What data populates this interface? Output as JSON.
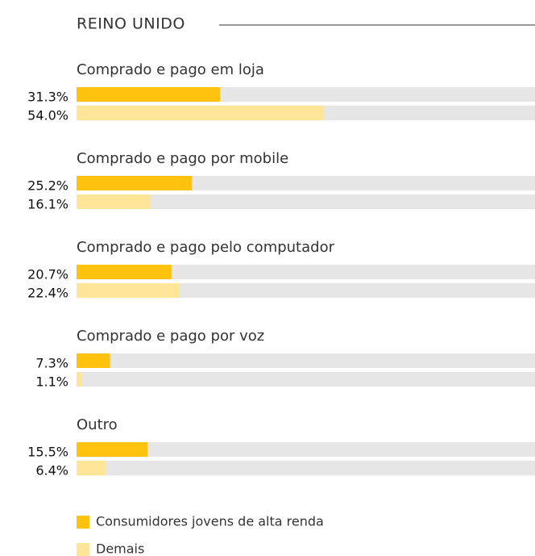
{
  "chart_data": {
    "type": "bar",
    "orientation": "horizontal",
    "title": "REINO UNIDO",
    "categories": [
      "Comprado e pago em loja",
      "Comprado e pago por mobile",
      "Comprado e pago pelo computador",
      "Comprado e pago por voz",
      "Outro"
    ],
    "series": [
      {
        "name": "Consumidores jovens de alta renda",
        "color": "#ffc20e",
        "values": [
          31.3,
          25.2,
          20.7,
          7.3,
          15.5
        ],
        "value_labels": [
          "31.3%",
          "25.2%",
          "20.7%",
          "7.3%",
          "15.5%"
        ]
      },
      {
        "name": "Demais",
        "color": "#ffe597",
        "values": [
          54.0,
          16.1,
          22.4,
          1.1,
          6.4
        ],
        "value_labels": [
          "54.0%",
          "16.1%",
          "22.4%",
          "1.1%",
          "6.4%"
        ]
      }
    ],
    "xlim": [
      0,
      100
    ],
    "track_color": "#e6e6e6"
  }
}
